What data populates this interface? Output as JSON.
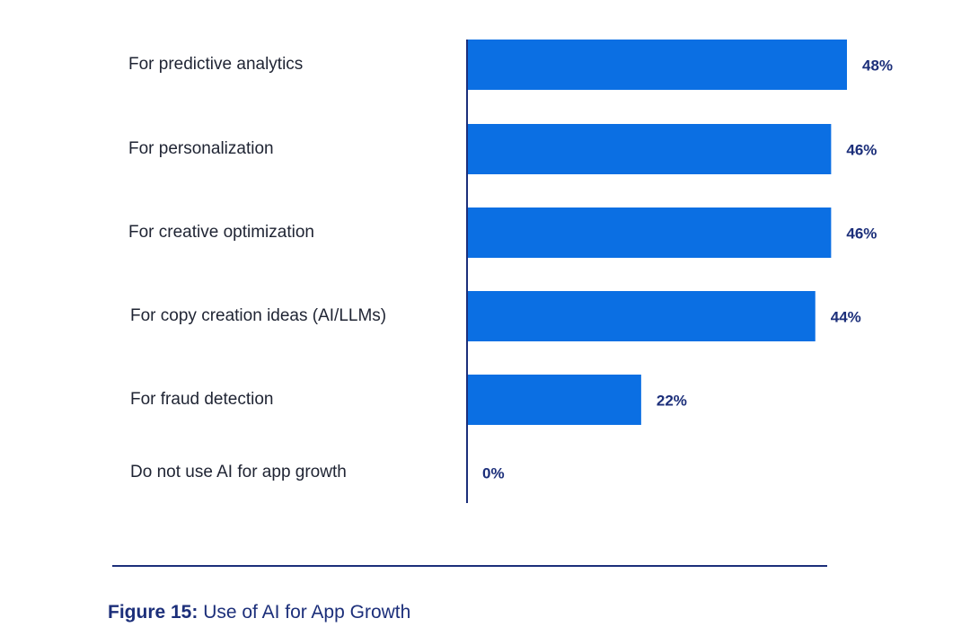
{
  "chart_data": {
    "type": "bar",
    "orientation": "horizontal",
    "categories": [
      "For predictive analytics",
      "For personalization",
      "For creative optimization",
      "For copy creation ideas (AI/LLMs)",
      "For fraud detection",
      "Do not use AI for app growth"
    ],
    "values": [
      48,
      46,
      46,
      44,
      22,
      0
    ],
    "value_labels": [
      "48%",
      "46%",
      "46%",
      "44%",
      "22%",
      "0%"
    ],
    "xlim": [
      0,
      48
    ],
    "grid": false,
    "legend": "none",
    "bar_color": "#0b6fe3",
    "axis_color": "#1c2f7a",
    "label_color": "#1c2f7a"
  },
  "caption": {
    "figure_number": "Figure 15:",
    "text": " Use of AI for App Growth"
  }
}
